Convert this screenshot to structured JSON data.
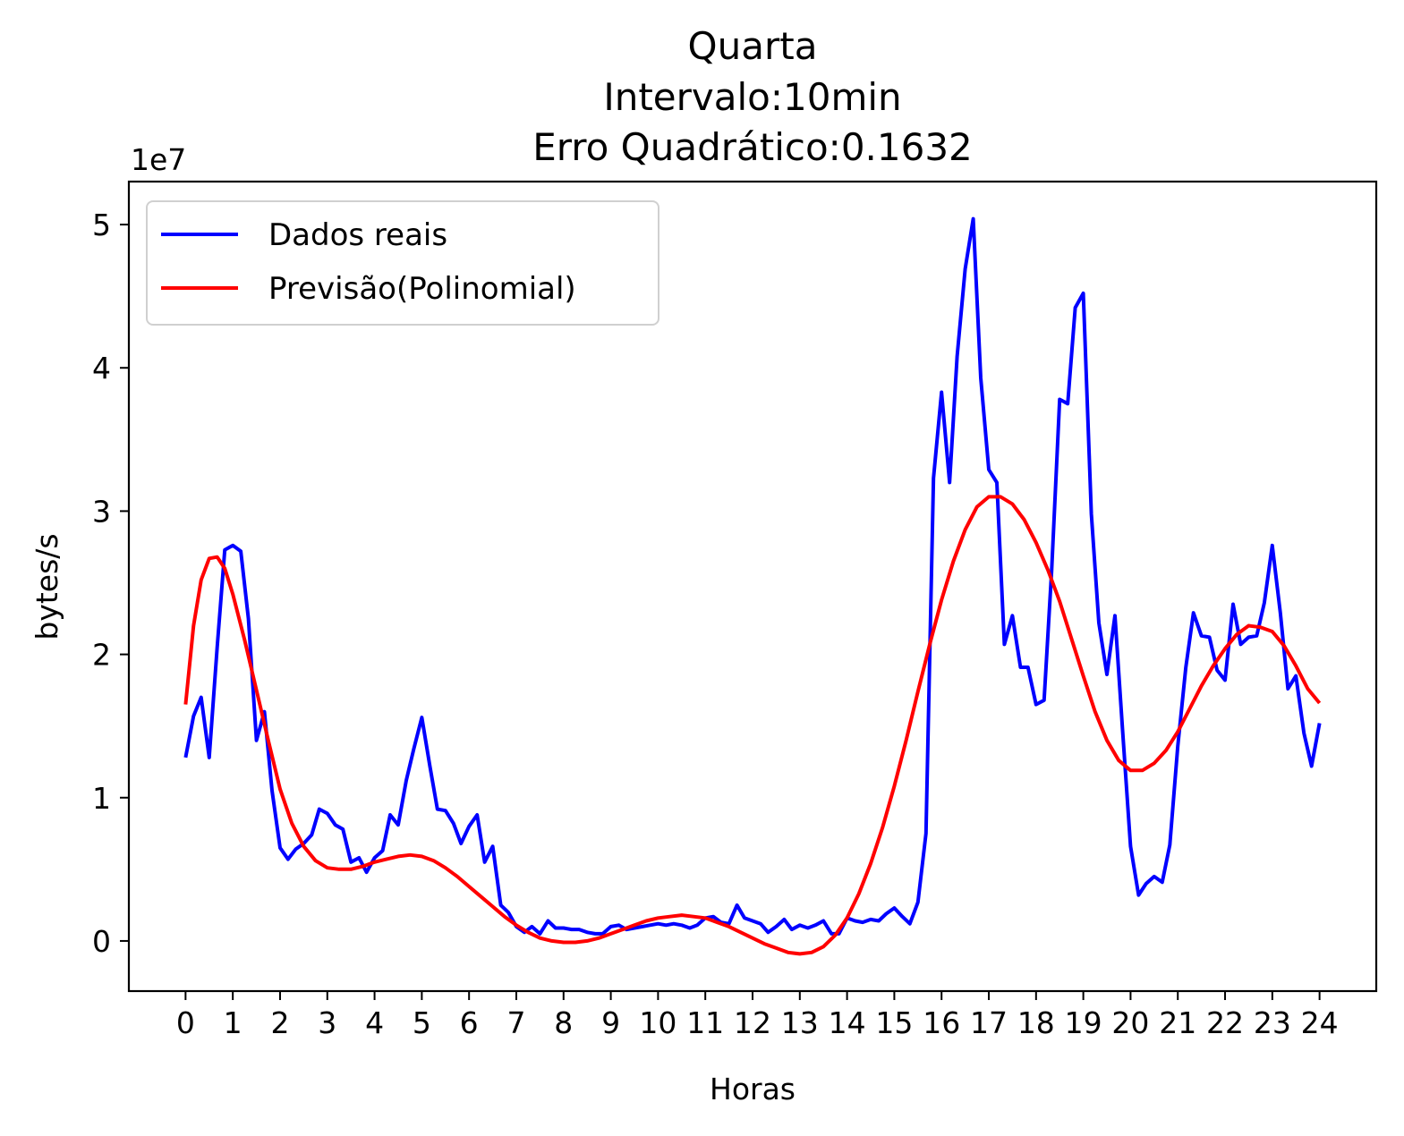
{
  "chart_data": {
    "type": "line",
    "title_lines": [
      "Quarta",
      "Intervalo:10min",
      "Erro Quadrático:0.1632"
    ],
    "xlabel": "Horas",
    "ylabel": "bytes/s",
    "y_offset_label": "1e7",
    "xticks": [
      0,
      1,
      2,
      3,
      4,
      5,
      6,
      7,
      8,
      9,
      10,
      11,
      12,
      13,
      14,
      15,
      16,
      17,
      18,
      19,
      20,
      21,
      22,
      23,
      24
    ],
    "xtick_labels": [
      "0",
      "1",
      "2",
      "3",
      "4",
      "5",
      "6",
      "7",
      "8",
      "9",
      "10",
      "11",
      "12",
      "13",
      "14",
      "15",
      "16",
      "17",
      "18",
      "19",
      "20",
      "21",
      "22",
      "23",
      "24"
    ],
    "yticks": [
      0,
      1,
      2,
      3,
      4,
      5
    ],
    "ytick_labels": [
      "0",
      "1",
      "2",
      "3",
      "4",
      "5"
    ],
    "xlim": [
      -1.2,
      25.2
    ],
    "ylim": [
      -0.35,
      5.3
    ],
    "grid": false,
    "legend_position": "top-left",
    "series": [
      {
        "name": "Dados reais",
        "color": "#0000ff",
        "points": [
          [
            0.0,
            1.28
          ],
          [
            0.17,
            1.57
          ],
          [
            0.33,
            1.7
          ],
          [
            0.5,
            1.28
          ],
          [
            0.67,
            2.05
          ],
          [
            0.83,
            2.73
          ],
          [
            1.0,
            2.76
          ],
          [
            1.17,
            2.72
          ],
          [
            1.33,
            2.25
          ],
          [
            1.5,
            1.4
          ],
          [
            1.67,
            1.6
          ],
          [
            1.83,
            1.05
          ],
          [
            2.0,
            0.65
          ],
          [
            2.17,
            0.57
          ],
          [
            2.33,
            0.64
          ],
          [
            2.5,
            0.68
          ],
          [
            2.67,
            0.74
          ],
          [
            2.83,
            0.92
          ],
          [
            3.0,
            0.89
          ],
          [
            3.17,
            0.81
          ],
          [
            3.33,
            0.78
          ],
          [
            3.5,
            0.55
          ],
          [
            3.67,
            0.58
          ],
          [
            3.83,
            0.48
          ],
          [
            4.0,
            0.58
          ],
          [
            4.17,
            0.63
          ],
          [
            4.33,
            0.88
          ],
          [
            4.5,
            0.81
          ],
          [
            4.67,
            1.12
          ],
          [
            4.83,
            1.34
          ],
          [
            5.0,
            1.56
          ],
          [
            5.17,
            1.22
          ],
          [
            5.33,
            0.92
          ],
          [
            5.5,
            0.91
          ],
          [
            5.67,
            0.82
          ],
          [
            5.83,
            0.68
          ],
          [
            6.0,
            0.8
          ],
          [
            6.17,
            0.88
          ],
          [
            6.33,
            0.55
          ],
          [
            6.5,
            0.66
          ],
          [
            6.67,
            0.25
          ],
          [
            6.83,
            0.2
          ],
          [
            7.0,
            0.1
          ],
          [
            7.17,
            0.06
          ],
          [
            7.33,
            0.1
          ],
          [
            7.5,
            0.05
          ],
          [
            7.67,
            0.14
          ],
          [
            7.83,
            0.09
          ],
          [
            8.0,
            0.09
          ],
          [
            8.17,
            0.08
          ],
          [
            8.33,
            0.08
          ],
          [
            8.5,
            0.06
          ],
          [
            8.67,
            0.05
          ],
          [
            8.83,
            0.05
          ],
          [
            9.0,
            0.1
          ],
          [
            9.17,
            0.11
          ],
          [
            9.33,
            0.08
          ],
          [
            9.5,
            0.09
          ],
          [
            9.67,
            0.1
          ],
          [
            9.83,
            0.11
          ],
          [
            10.0,
            0.12
          ],
          [
            10.17,
            0.11
          ],
          [
            10.33,
            0.12
          ],
          [
            10.5,
            0.11
          ],
          [
            10.67,
            0.09
          ],
          [
            10.83,
            0.11
          ],
          [
            11.0,
            0.16
          ],
          [
            11.17,
            0.17
          ],
          [
            11.33,
            0.13
          ],
          [
            11.5,
            0.12
          ],
          [
            11.67,
            0.25
          ],
          [
            11.83,
            0.16
          ],
          [
            12.0,
            0.14
          ],
          [
            12.17,
            0.12
          ],
          [
            12.33,
            0.06
          ],
          [
            12.5,
            0.1
          ],
          [
            12.67,
            0.15
          ],
          [
            12.83,
            0.08
          ],
          [
            13.0,
            0.11
          ],
          [
            13.17,
            0.09
          ],
          [
            13.33,
            0.11
          ],
          [
            13.5,
            0.14
          ],
          [
            13.67,
            0.05
          ],
          [
            13.83,
            0.05
          ],
          [
            14.0,
            0.16
          ],
          [
            14.17,
            0.14
          ],
          [
            14.33,
            0.13
          ],
          [
            14.5,
            0.15
          ],
          [
            14.67,
            0.14
          ],
          [
            14.83,
            0.19
          ],
          [
            15.0,
            0.23
          ],
          [
            15.17,
            0.17
          ],
          [
            15.33,
            0.12
          ],
          [
            15.5,
            0.27
          ],
          [
            15.67,
            0.75
          ],
          [
            15.83,
            3.23
          ],
          [
            16.0,
            3.83
          ],
          [
            16.17,
            3.2
          ],
          [
            16.33,
            4.08
          ],
          [
            16.5,
            4.69
          ],
          [
            16.67,
            5.04
          ],
          [
            16.83,
            3.93
          ],
          [
            17.0,
            3.29
          ],
          [
            17.17,
            3.2
          ],
          [
            17.33,
            2.07
          ],
          [
            17.5,
            2.27
          ],
          [
            17.67,
            1.91
          ],
          [
            17.83,
            1.91
          ],
          [
            18.0,
            1.65
          ],
          [
            18.17,
            1.68
          ],
          [
            18.33,
            2.58
          ],
          [
            18.5,
            3.78
          ],
          [
            18.67,
            3.75
          ],
          [
            18.83,
            4.42
          ],
          [
            19.0,
            4.52
          ],
          [
            19.17,
            2.98
          ],
          [
            19.33,
            2.22
          ],
          [
            19.5,
            1.86
          ],
          [
            19.67,
            2.27
          ],
          [
            19.83,
            1.48
          ],
          [
            20.0,
            0.66
          ],
          [
            20.17,
            0.32
          ],
          [
            20.33,
            0.4
          ],
          [
            20.5,
            0.45
          ],
          [
            20.67,
            0.41
          ],
          [
            20.83,
            0.67
          ],
          [
            21.0,
            1.36
          ],
          [
            21.17,
            1.91
          ],
          [
            21.33,
            2.29
          ],
          [
            21.5,
            2.13
          ],
          [
            21.67,
            2.12
          ],
          [
            21.83,
            1.89
          ],
          [
            22.0,
            1.82
          ],
          [
            22.17,
            2.35
          ],
          [
            22.33,
            2.07
          ],
          [
            22.5,
            2.12
          ],
          [
            22.67,
            2.13
          ],
          [
            22.83,
            2.36
          ],
          [
            23.0,
            2.76
          ],
          [
            23.17,
            2.29
          ],
          [
            23.33,
            1.76
          ],
          [
            23.5,
            1.85
          ],
          [
            23.67,
            1.45
          ],
          [
            23.83,
            1.22
          ],
          [
            24.0,
            1.52
          ]
        ]
      },
      {
        "name": "Previsão(Polinomial)",
        "color": "#ff0000",
        "points": [
          [
            0.0,
            1.65
          ],
          [
            0.17,
            2.2
          ],
          [
            0.33,
            2.52
          ],
          [
            0.5,
            2.67
          ],
          [
            0.67,
            2.68
          ],
          [
            0.83,
            2.6
          ],
          [
            1.0,
            2.42
          ],
          [
            1.25,
            2.1
          ],
          [
            1.5,
            1.75
          ],
          [
            1.75,
            1.4
          ],
          [
            2.0,
            1.06
          ],
          [
            2.25,
            0.82
          ],
          [
            2.5,
            0.66
          ],
          [
            2.75,
            0.56
          ],
          [
            3.0,
            0.51
          ],
          [
            3.25,
            0.5
          ],
          [
            3.5,
            0.5
          ],
          [
            3.75,
            0.52
          ],
          [
            4.0,
            0.55
          ],
          [
            4.25,
            0.57
          ],
          [
            4.5,
            0.59
          ],
          [
            4.75,
            0.6
          ],
          [
            5.0,
            0.59
          ],
          [
            5.25,
            0.56
          ],
          [
            5.5,
            0.51
          ],
          [
            5.75,
            0.45
          ],
          [
            6.0,
            0.38
          ],
          [
            6.25,
            0.31
          ],
          [
            6.5,
            0.24
          ],
          [
            6.75,
            0.17
          ],
          [
            7.0,
            0.11
          ],
          [
            7.25,
            0.06
          ],
          [
            7.5,
            0.02
          ],
          [
            7.75,
            0.0
          ],
          [
            8.0,
            -0.01
          ],
          [
            8.25,
            -0.01
          ],
          [
            8.5,
            0.0
          ],
          [
            8.75,
            0.02
          ],
          [
            9.0,
            0.05
          ],
          [
            9.25,
            0.08
          ],
          [
            9.5,
            0.11
          ],
          [
            9.75,
            0.14
          ],
          [
            10.0,
            0.16
          ],
          [
            10.25,
            0.17
          ],
          [
            10.5,
            0.18
          ],
          [
            10.75,
            0.17
          ],
          [
            11.0,
            0.16
          ],
          [
            11.25,
            0.13
          ],
          [
            11.5,
            0.1
          ],
          [
            11.75,
            0.06
          ],
          [
            12.0,
            0.02
          ],
          [
            12.25,
            -0.02
          ],
          [
            12.5,
            -0.05
          ],
          [
            12.75,
            -0.08
          ],
          [
            13.0,
            -0.09
          ],
          [
            13.25,
            -0.08
          ],
          [
            13.5,
            -0.04
          ],
          [
            13.75,
            0.04
          ],
          [
            14.0,
            0.16
          ],
          [
            14.25,
            0.33
          ],
          [
            14.5,
            0.54
          ],
          [
            14.75,
            0.79
          ],
          [
            15.0,
            1.08
          ],
          [
            15.25,
            1.4
          ],
          [
            15.5,
            1.74
          ],
          [
            15.75,
            2.07
          ],
          [
            16.0,
            2.38
          ],
          [
            16.25,
            2.65
          ],
          [
            16.5,
            2.87
          ],
          [
            16.75,
            3.03
          ],
          [
            17.0,
            3.1
          ],
          [
            17.25,
            3.1
          ],
          [
            17.5,
            3.05
          ],
          [
            17.75,
            2.94
          ],
          [
            18.0,
            2.78
          ],
          [
            18.25,
            2.59
          ],
          [
            18.5,
            2.37
          ],
          [
            18.75,
            2.11
          ],
          [
            19.0,
            1.85
          ],
          [
            19.25,
            1.6
          ],
          [
            19.5,
            1.4
          ],
          [
            19.75,
            1.26
          ],
          [
            20.0,
            1.19
          ],
          [
            20.25,
            1.19
          ],
          [
            20.5,
            1.24
          ],
          [
            20.75,
            1.33
          ],
          [
            21.0,
            1.46
          ],
          [
            21.25,
            1.62
          ],
          [
            21.5,
            1.78
          ],
          [
            21.75,
            1.92
          ],
          [
            22.0,
            2.04
          ],
          [
            22.25,
            2.14
          ],
          [
            22.5,
            2.2
          ],
          [
            22.75,
            2.19
          ],
          [
            23.0,
            2.16
          ],
          [
            23.25,
            2.06
          ],
          [
            23.5,
            1.92
          ],
          [
            23.75,
            1.76
          ],
          [
            24.0,
            1.66
          ]
        ]
      }
    ]
  }
}
